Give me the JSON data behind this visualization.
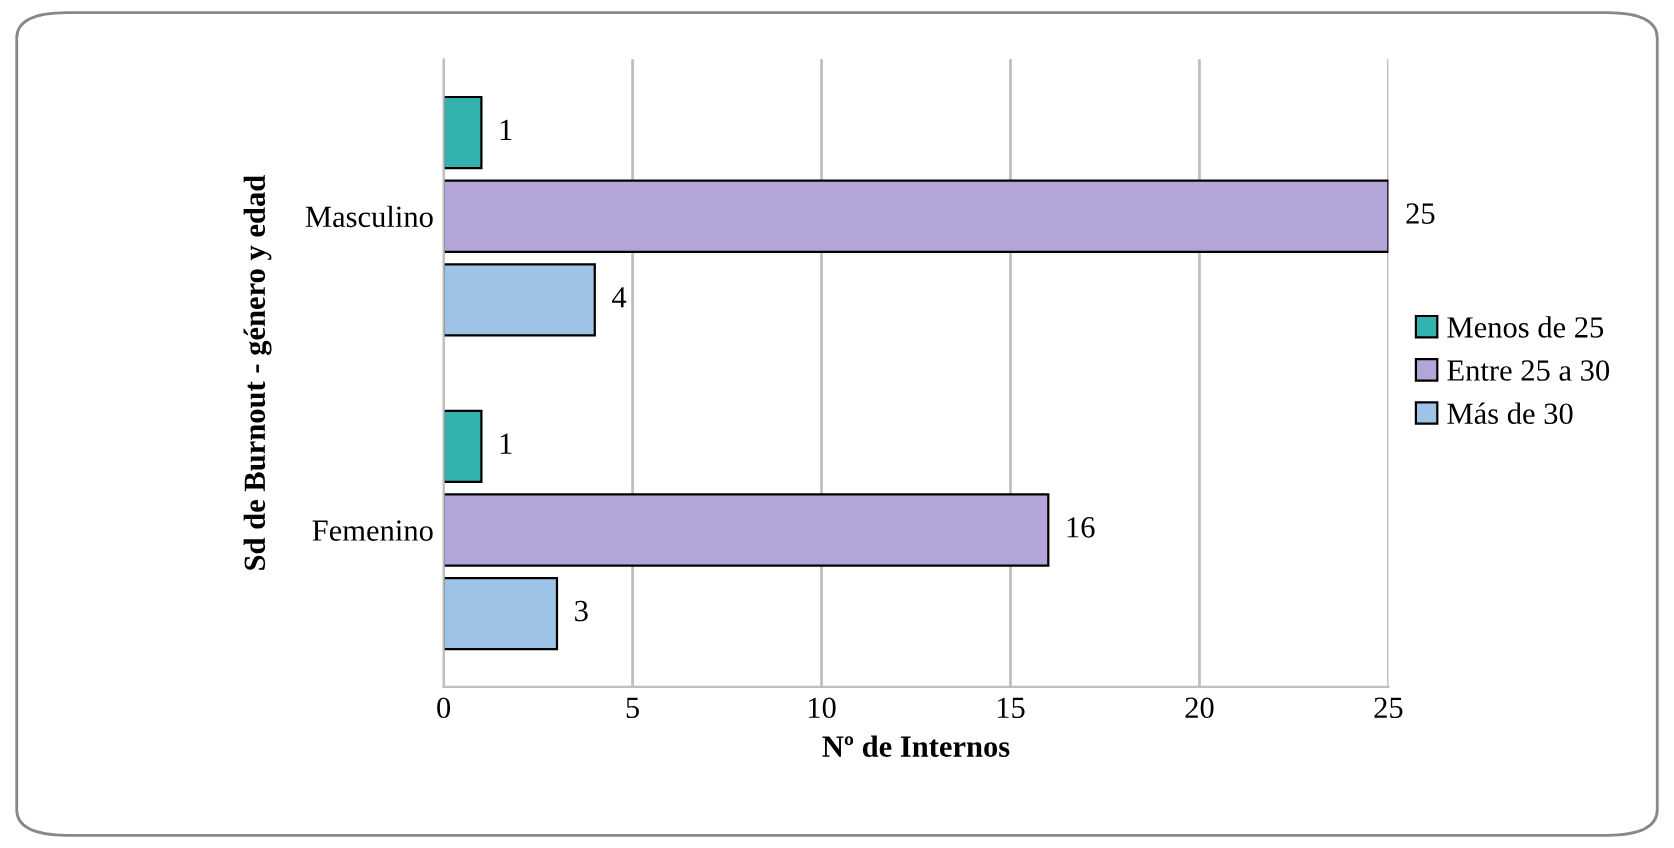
{
  "chart_data": {
    "type": "bar",
    "orientation": "horizontal",
    "xlabel": "Nº de Internos",
    "ylabel": "Sd de Burnout - género y edad",
    "categories": [
      "Masculino",
      "Femenino"
    ],
    "series": [
      {
        "name": "Menos de 25",
        "color": "#33b3b0",
        "values": [
          1,
          1
        ]
      },
      {
        "name": "Entre 25 a 30",
        "color": "#b3a4d9",
        "values": [
          25,
          16
        ]
      },
      {
        "name": "Más de 30",
        "color": "#9dc3e6",
        "values": [
          4,
          3
        ]
      }
    ],
    "xlim": [
      0,
      25
    ],
    "xticks": [
      0,
      5,
      10,
      15,
      20,
      25
    ],
    "grid": "x",
    "legend": "right",
    "data_labels": true
  }
}
